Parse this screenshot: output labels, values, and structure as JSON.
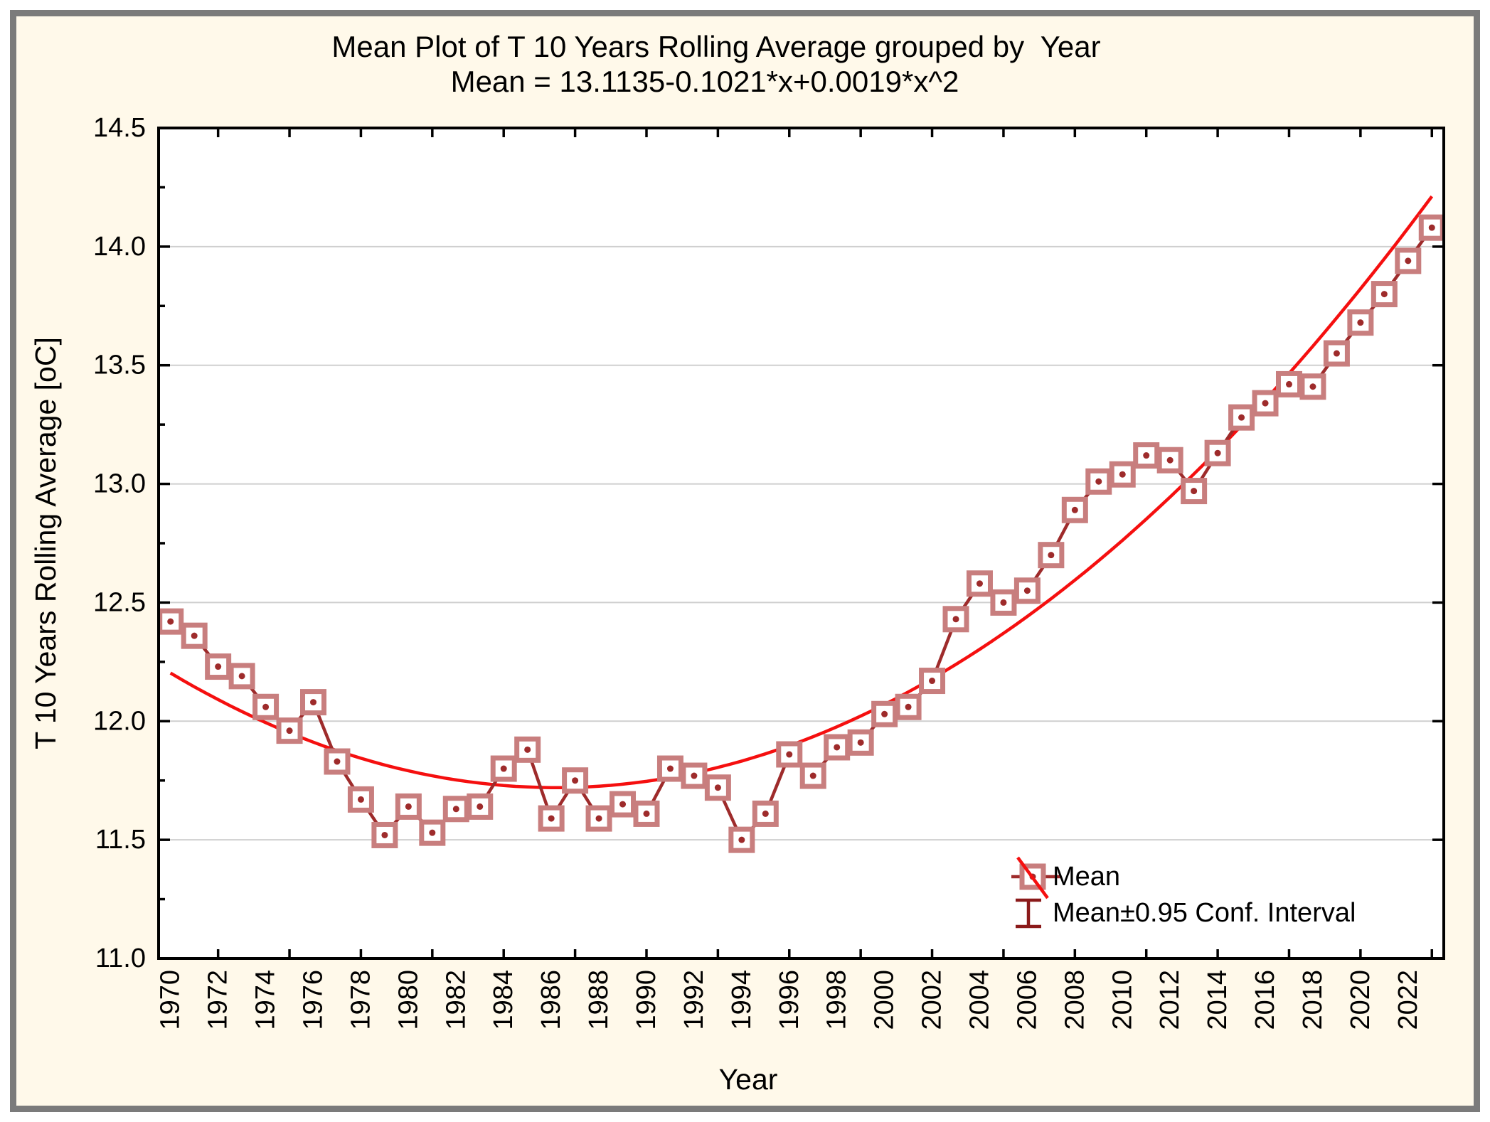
{
  "window": {
    "outer_background": "#ffffff",
    "frame_color": "#7b7b7b",
    "canvas_color": "#fff9ea"
  },
  "title": {
    "line1": "Mean Plot of T 10 Years Rolling Average grouped by  Year",
    "line2": "Mean = 13.1135-0.1021*x+0.0019*x^2"
  },
  "axes": {
    "x": {
      "label": "Year"
    },
    "y": {
      "label": "T 10 Years Rolling Average [oC]"
    }
  },
  "legend": {
    "position": "bottom-right-inside-plot",
    "items": [
      {
        "label": "Mean",
        "glyph": "square-marker-with-mean-line-and-fit-line"
      },
      {
        "label": "Mean±0.95 Conf. Interval",
        "glyph": "error-bar-i-beam"
      }
    ]
  },
  "colors": {
    "series_line": "#9e2b2b",
    "marker_stroke": "#c87e7e",
    "marker_fill": "#ffffff",
    "fit_line": "#f50f0f",
    "error_bar": "#8b1a1a",
    "gridline": "#cfcfcf",
    "plot_frame": "#000000",
    "plot_background": "#ffffff",
    "text": "#000000"
  },
  "chart_data": {
    "type": "line",
    "title": "Mean Plot of T 10 Years Rolling Average grouped by  Year",
    "subtitle": "Mean = 13.1135-0.1021*x+0.0019*x^2",
    "xlabel": "Year",
    "ylabel": "T 10 Years Rolling Average [oC]",
    "ylim": [
      11.0,
      14.5
    ],
    "grid": "horizontal-only",
    "legend_position": "bottom-right",
    "x_start": 1970,
    "x_end": 2023,
    "x_label_years": [
      1970,
      1972,
      1974,
      1976,
      1978,
      1980,
      1982,
      1984,
      1986,
      1988,
      1990,
      1992,
      1994,
      1996,
      1998,
      2000,
      2002,
      2004,
      2006,
      2008,
      2010,
      2012,
      2014,
      2016,
      2018,
      2020,
      2022
    ],
    "x_scale_tick_years": [
      1972,
      1975,
      1978,
      1981,
      1984,
      1987,
      1990,
      1993,
      1996,
      1999,
      2002,
      2005,
      2008,
      2011,
      2014,
      2017,
      2020,
      2023
    ],
    "y_tick_values": [
      11.0,
      11.5,
      12.0,
      12.5,
      13.0,
      13.5,
      14.0,
      14.5
    ],
    "y_minor_tick_values": [
      11.25,
      11.75,
      12.25,
      12.75,
      13.25,
      13.75,
      14.25
    ],
    "gridline_values": [
      11.5,
      12.0,
      12.5,
      13.0,
      13.5,
      14.0
    ],
    "series": [
      {
        "name": "Mean",
        "years": [
          1970,
          1971,
          1972,
          1973,
          1974,
          1975,
          1976,
          1977,
          1978,
          1979,
          1980,
          1981,
          1982,
          1983,
          1984,
          1985,
          1986,
          1987,
          1988,
          1989,
          1990,
          1991,
          1992,
          1993,
          1994,
          1995,
          1996,
          1997,
          1998,
          1999,
          2000,
          2001,
          2002,
          2003,
          2004,
          2005,
          2006,
          2007,
          2008,
          2009,
          2010,
          2011,
          2012,
          2013,
          2014,
          2015,
          2016,
          2017,
          2018,
          2019,
          2020,
          2021,
          2022,
          2023
        ],
        "values": [
          12.42,
          12.36,
          12.23,
          12.19,
          12.06,
          11.96,
          12.08,
          11.83,
          11.67,
          11.52,
          11.64,
          11.53,
          11.63,
          11.64,
          11.8,
          11.88,
          11.59,
          11.75,
          11.59,
          11.65,
          11.61,
          11.8,
          11.77,
          11.72,
          11.5,
          11.61,
          11.86,
          11.77,
          11.89,
          11.91,
          12.03,
          12.06,
          12.17,
          12.43,
          12.58,
          12.5,
          12.55,
          12.7,
          12.89,
          13.01,
          13.04,
          13.12,
          13.1,
          12.97,
          13.13,
          13.28,
          13.34,
          13.42,
          13.41,
          13.55,
          13.68,
          13.8,
          13.94,
          14.08
        ]
      },
      {
        "name": "Quadratic fit (displayed as red curve)",
        "fit": {
          "form": "k + a*(year - h)^2",
          "a": 0.00184,
          "h": 1986.2,
          "k": 11.72,
          "year_from": 1970,
          "year_to": 2023
        }
      }
    ]
  }
}
